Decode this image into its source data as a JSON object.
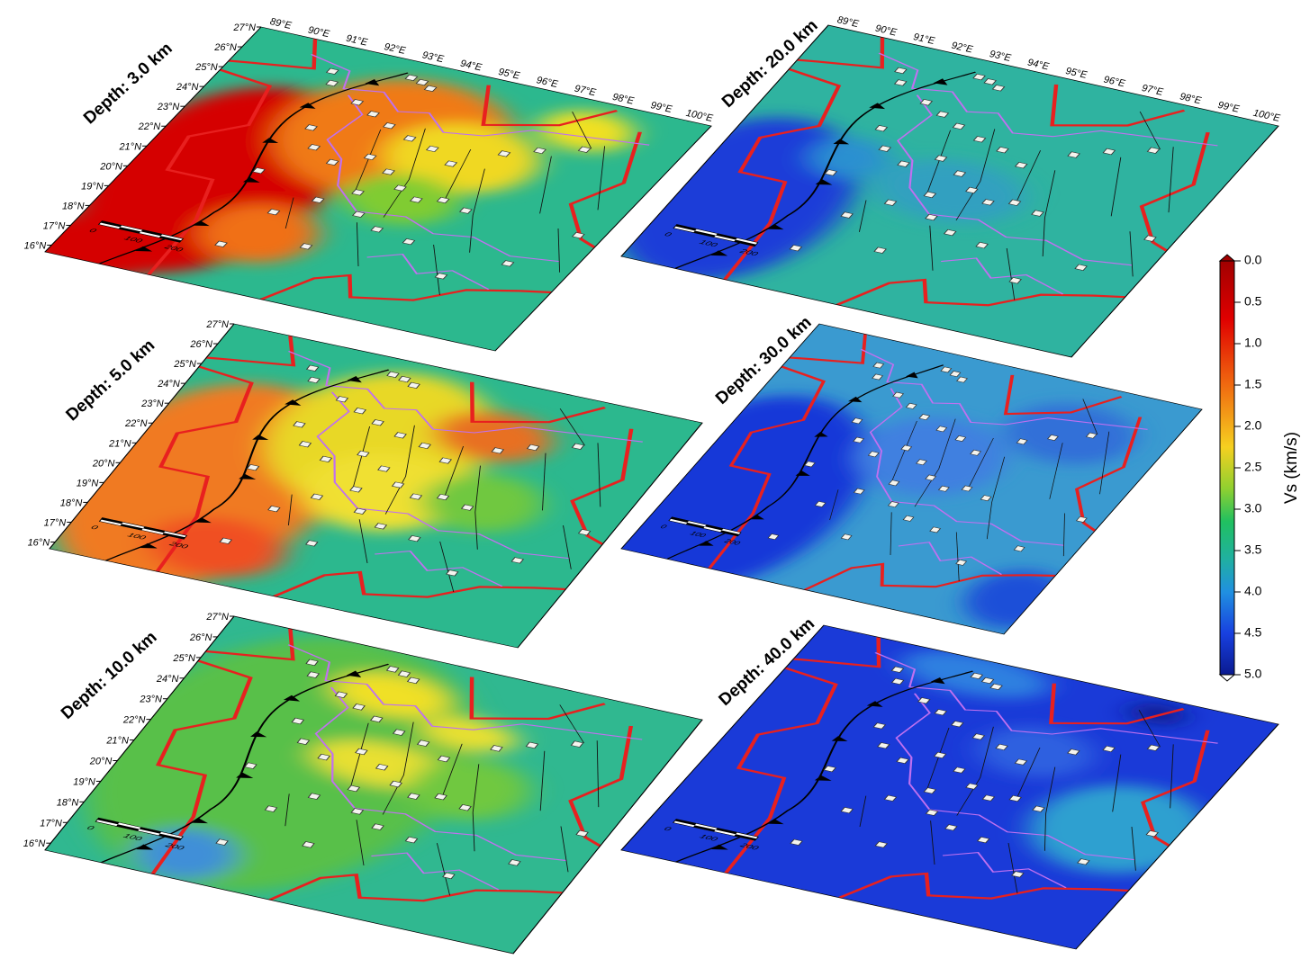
{
  "panels": [
    {
      "label": "Depth: 3.0 km",
      "lat_labels": [
        "16°N",
        "17°N",
        "18°N",
        "19°N",
        "20°N",
        "21°N",
        "22°N",
        "23°N",
        "24°N",
        "25°N",
        "26°N",
        "27°N"
      ],
      "lon_labels": [
        "89°E",
        "90°E",
        "91°E",
        "92°E",
        "93°E",
        "94°E",
        "95°E",
        "96°E",
        "97°E",
        "98°E",
        "99°E",
        "100°E"
      ],
      "scale_labels": [
        "0",
        "100",
        "200"
      ]
    },
    {
      "label": "Depth: 5.0 km",
      "lat_labels": [
        "16°N",
        "17°N",
        "18°N",
        "19°N",
        "20°N",
        "21°N",
        "22°N",
        "23°N",
        "24°N",
        "25°N",
        "26°N",
        "27°N"
      ],
      "scale_labels": [
        "0",
        "100",
        "200"
      ]
    },
    {
      "label": "Depth: 10.0 km",
      "lat_labels": [
        "16°N",
        "17°N",
        "18°N",
        "19°N",
        "20°N",
        "21°N",
        "22°N",
        "23°N",
        "24°N",
        "25°N",
        "26°N",
        "27°N"
      ],
      "scale_labels": [
        "0",
        "100",
        "200"
      ]
    },
    {
      "label": "Depth: 20.0 km",
      "lon_labels": [
        "89°E",
        "90°E",
        "91°E",
        "92°E",
        "93°E",
        "94°E",
        "95°E",
        "96°E",
        "97°E",
        "98°E",
        "99°E",
        "100°E"
      ],
      "scale_labels": [
        "0",
        "100",
        "200"
      ]
    },
    {
      "label": "Depth: 30.0 km",
      "scale_labels": [
        "0",
        "100",
        "200"
      ]
    },
    {
      "label": "Depth: 40.0 km",
      "scale_labels": [
        "0",
        "100",
        "200"
      ]
    }
  ],
  "colorbar": {
    "label": "Vs (km/s)",
    "range": [
      0,
      5
    ],
    "ticks": [
      {
        "value": 0,
        "label": "0.0"
      },
      0.5,
      {
        "value": 1,
        "label": "1.0"
      },
      1.5,
      {
        "value": 2,
        "label": "2.0"
      },
      2.5,
      {
        "value": 3,
        "label": "3.0"
      },
      3.5,
      {
        "value": 4,
        "label": "4.0"
      },
      4.5,
      {
        "value": 5,
        "label": "5.0"
      }
    ]
  }
}
